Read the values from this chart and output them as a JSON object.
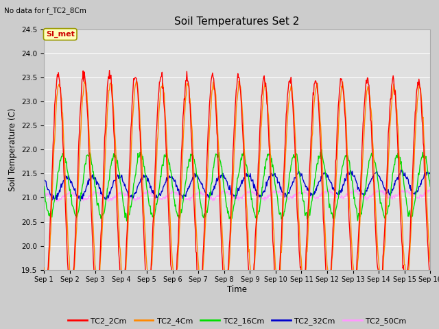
{
  "title": "Soil Temperatures Set 2",
  "subtitle": "No data for f_TC2_8Cm",
  "ylabel": "Soil Temperature (C)",
  "xlabel": "Time",
  "annotation": "SI_met",
  "ylim": [
    19.5,
    24.5
  ],
  "series_colors": {
    "TC2_2Cm": "#ff0000",
    "TC2_4Cm": "#ff8800",
    "TC2_16Cm": "#00dd00",
    "TC2_32Cm": "#0000cc",
    "TC2_50Cm": "#ff99ff"
  },
  "x_tick_labels": [
    "Sep 1",
    "Sep 2",
    "Sep 3",
    "Sep 4",
    "Sep 5",
    "Sep 6",
    "Sep 7",
    "Sep 8",
    "Sep 9",
    "Sep 10",
    "Sep 11",
    "Sep 12",
    "Sep 13",
    "Sep 14",
    "Sep 15",
    "Sep 16"
  ],
  "n_points": 720,
  "fig_bg": "#cccccc",
  "plot_bg": "#e0e0e0"
}
